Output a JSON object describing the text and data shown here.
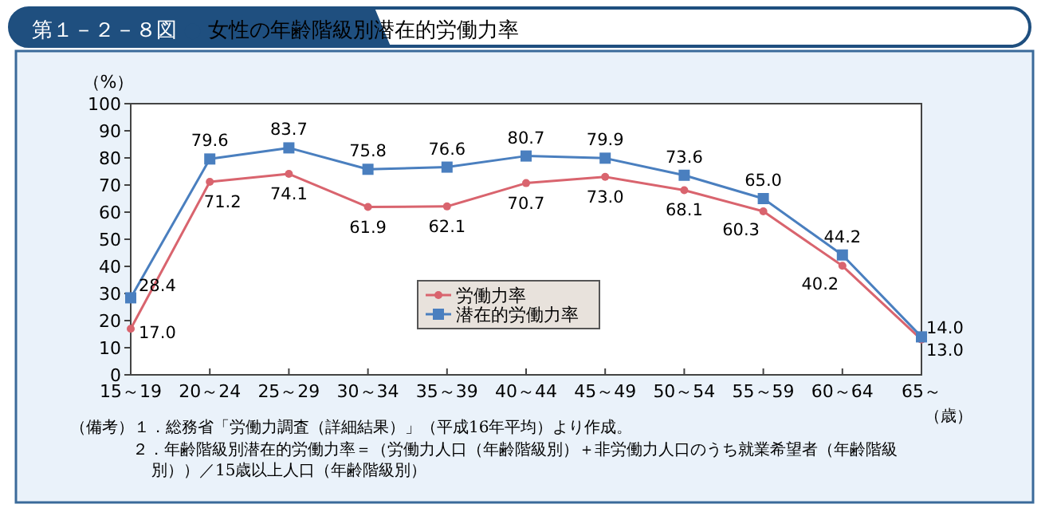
{
  "chart_data": {
    "type": "line",
    "title": "第１－２－８図",
    "subtitle": "女性の年齢階級別潜在的労働力率",
    "ylabel": "（%）",
    "xlabel": "（歳）",
    "categories": [
      "15～19",
      "20～24",
      "25～29",
      "30～34",
      "35～39",
      "40～44",
      "45～49",
      "50～54",
      "55～59",
      "60～64",
      "65～"
    ],
    "series": [
      {
        "name": "労働力率",
        "color": "#d9646e",
        "marker": "circle",
        "values": [
          17.0,
          71.2,
          74.1,
          61.9,
          62.1,
          70.7,
          73.0,
          68.1,
          60.3,
          40.2,
          13.0
        ],
        "value_labels": [
          "17.0",
          "71.2",
          "74.1",
          "61.9",
          "62.1",
          "70.7",
          "73.0",
          "68.1",
          "60.3",
          "40.2",
          "13.0"
        ]
      },
      {
        "name": "潜在的労働力率",
        "color": "#4a7fbf",
        "marker": "square",
        "values": [
          28.4,
          79.6,
          83.7,
          75.8,
          76.6,
          80.7,
          79.9,
          73.6,
          65.0,
          44.2,
          14.0
        ],
        "value_labels": [
          "28.4",
          "79.6",
          "83.7",
          "75.8",
          "76.6",
          "80.7",
          "79.9",
          "73.6",
          "65.0",
          "44.2",
          "14.0"
        ]
      }
    ],
    "ylim": [
      0,
      100
    ],
    "yticks": [
      0,
      10,
      20,
      30,
      40,
      50,
      60,
      70,
      80,
      90,
      100
    ],
    "legend": "bottom",
    "grid": false,
    "annotations": [
      "（備考）１．総務省「労働力調査（詳細結果）」（平成16年平均）より作成。",
      "２．年齢階級別潜在的労働力率＝（労働力人口（年齢階級別）＋非労働力人口のうち就業希望者（年齢階級別））／15歳以上人口（年齢階級別）"
    ]
  }
}
